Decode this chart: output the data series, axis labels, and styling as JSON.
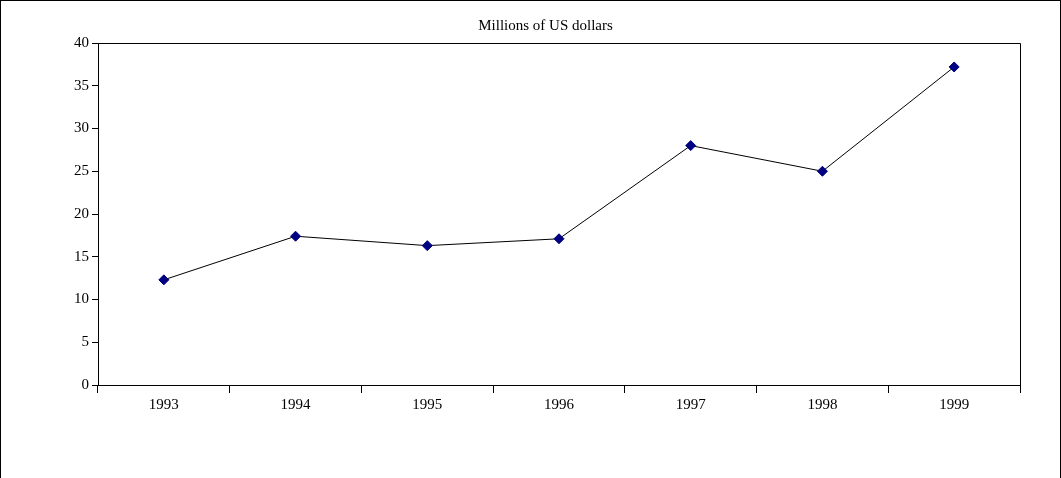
{
  "chart_data": {
    "type": "line",
    "title": "Millions of US dollars",
    "categories": [
      "1993",
      "1994",
      "1995",
      "1996",
      "1997",
      "1998",
      "1999"
    ],
    "series": [
      {
        "color": "#000080",
        "values": [
          12.3,
          17.4,
          16.3,
          17.1,
          28.0,
          25.0,
          37.2
        ]
      }
    ],
    "ylim": [
      0,
      40
    ],
    "yticks": [
      0,
      5,
      10,
      15,
      20,
      25,
      30,
      35,
      40
    ],
    "grid": false,
    "legend": false,
    "marker": "diamond",
    "line_style": "solid"
  }
}
